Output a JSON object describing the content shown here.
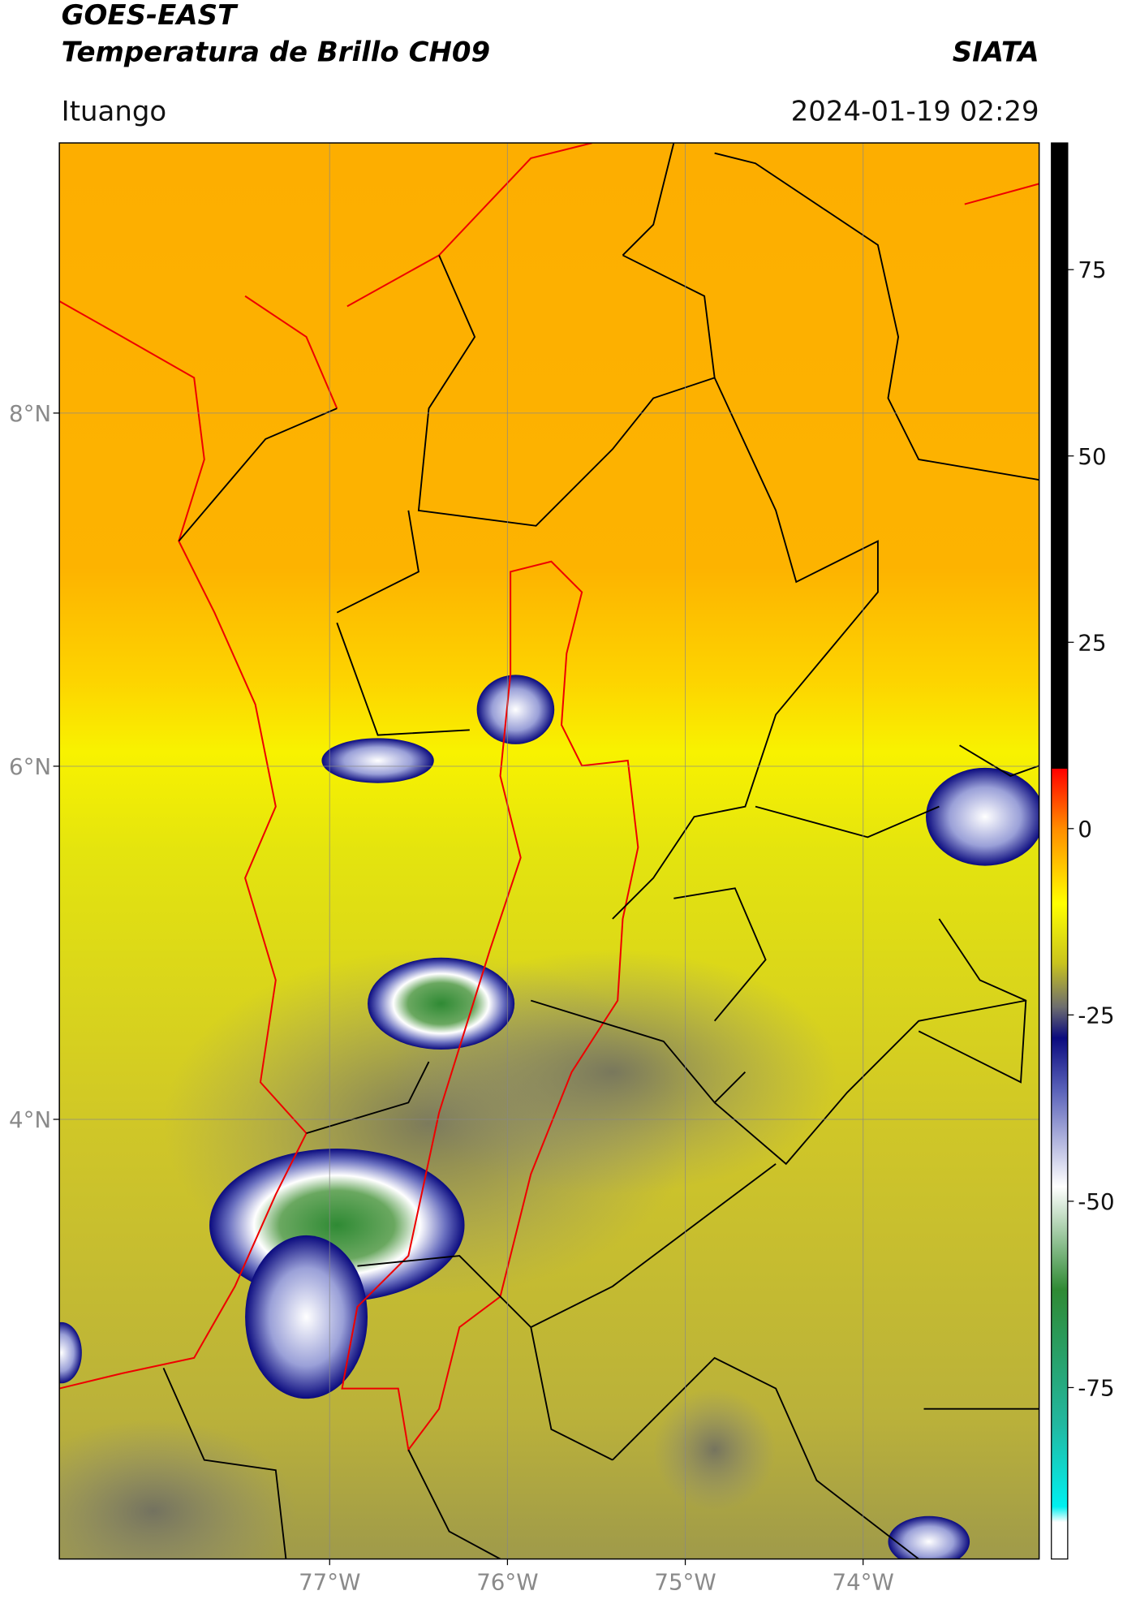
{
  "header": {
    "title": "GOES-EAST",
    "subtitle": "Temperatura de Brillo CH09",
    "source": "SIATA",
    "location": "Ituango",
    "datetime": "2024-01-19 02:29"
  },
  "map": {
    "lon_range": [
      -78.52,
      -73.01
    ],
    "lat_range": [
      1.51,
      9.53
    ],
    "grid": true,
    "lat_ticks": [
      {
        "value": 8,
        "label": "8°N"
      },
      {
        "value": 6,
        "label": "6°N"
      },
      {
        "value": 4,
        "label": "4°N"
      }
    ],
    "lon_ticks": [
      {
        "value": -77,
        "label": "77°W"
      },
      {
        "value": -76,
        "label": "76°W"
      },
      {
        "value": -75,
        "label": "75°W"
      },
      {
        "value": -74,
        "label": "74°W"
      }
    ]
  },
  "colorbar": {
    "range": [
      -98,
      92
    ],
    "ticks": [
      75,
      50,
      25,
      0,
      -25,
      -50,
      -75
    ]
  }
}
